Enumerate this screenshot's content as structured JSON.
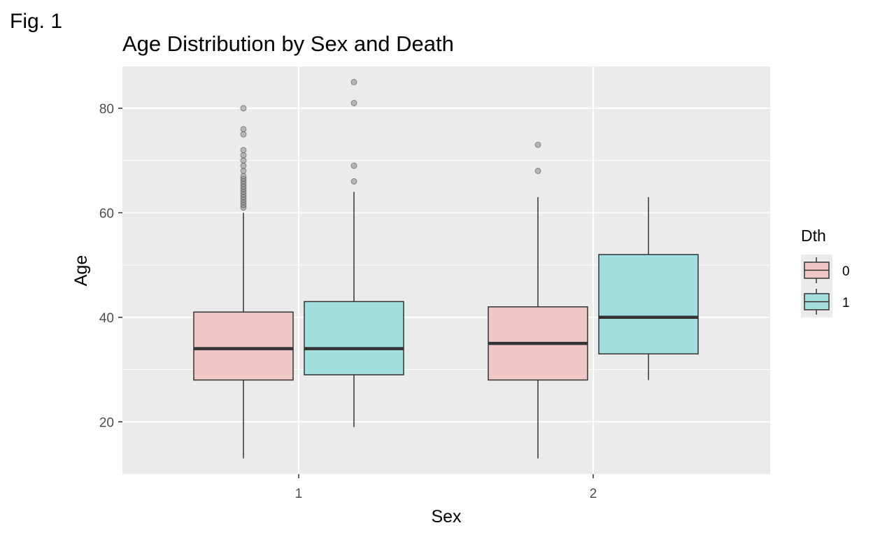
{
  "figure_label": "Fig. 1",
  "chart_data": {
    "type": "boxplot",
    "title": "Age Distribution by Sex and Death",
    "xlabel": "Sex",
    "ylabel": "Age",
    "categories": [
      "1",
      "2"
    ],
    "ylim": [
      10,
      88
    ],
    "yticks": [
      20,
      40,
      60,
      80
    ],
    "grid": true,
    "legend": {
      "title": "Dth",
      "position": "right",
      "entries": [
        "0",
        "1"
      ]
    },
    "colors": {
      "0": "#f0c8c6",
      "1": "#a4dfe0",
      "panel_bg": "#ebebeb",
      "grid": "#ffffff",
      "outlier": "#888888"
    },
    "series": [
      {
        "name": "0",
        "boxes": [
          {
            "category": "1",
            "lower_whisker": 13,
            "q1": 28,
            "median": 34,
            "q3": 41,
            "upper_whisker": 60,
            "outliers": [
              61,
              61.5,
              62,
              62.5,
              63,
              63.5,
              64,
              64.5,
              65,
              65.5,
              66,
              66.5,
              67,
              68,
              69,
              70,
              71,
              72,
              75,
              76,
              80
            ]
          },
          {
            "category": "2",
            "lower_whisker": 13,
            "q1": 28,
            "median": 35,
            "q3": 42,
            "upper_whisker": 63,
            "outliers": [
              68,
              73
            ]
          }
        ]
      },
      {
        "name": "1",
        "boxes": [
          {
            "category": "1",
            "lower_whisker": 19,
            "q1": 29,
            "median": 34,
            "q3": 43,
            "upper_whisker": 64,
            "outliers": [
              66,
              69,
              81,
              85
            ]
          },
          {
            "category": "2",
            "lower_whisker": 28,
            "q1": 33,
            "median": 40,
            "q3": 52,
            "upper_whisker": 63,
            "outliers": []
          }
        ]
      }
    ]
  }
}
